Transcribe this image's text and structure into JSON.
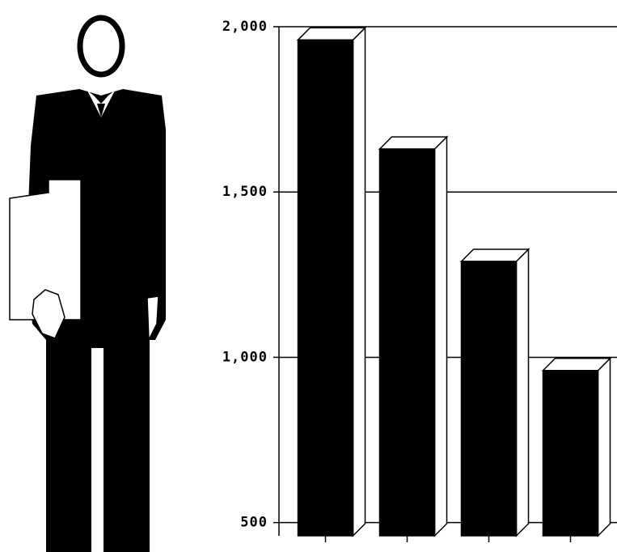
{
  "chart_data": {
    "type": "bar3d",
    "categories": [
      null,
      null,
      null,
      null
    ],
    "values": [
      1960,
      1630,
      1290,
      960
    ],
    "color": "#000000",
    "ylim": [
      460,
      2000
    ],
    "yticks": [
      {
        "value": 2000,
        "label": "2,000"
      },
      {
        "value": 1500,
        "label": "1,500"
      },
      {
        "value": 1000,
        "label": "1,000"
      },
      500
    ],
    "grid": true
  }
}
